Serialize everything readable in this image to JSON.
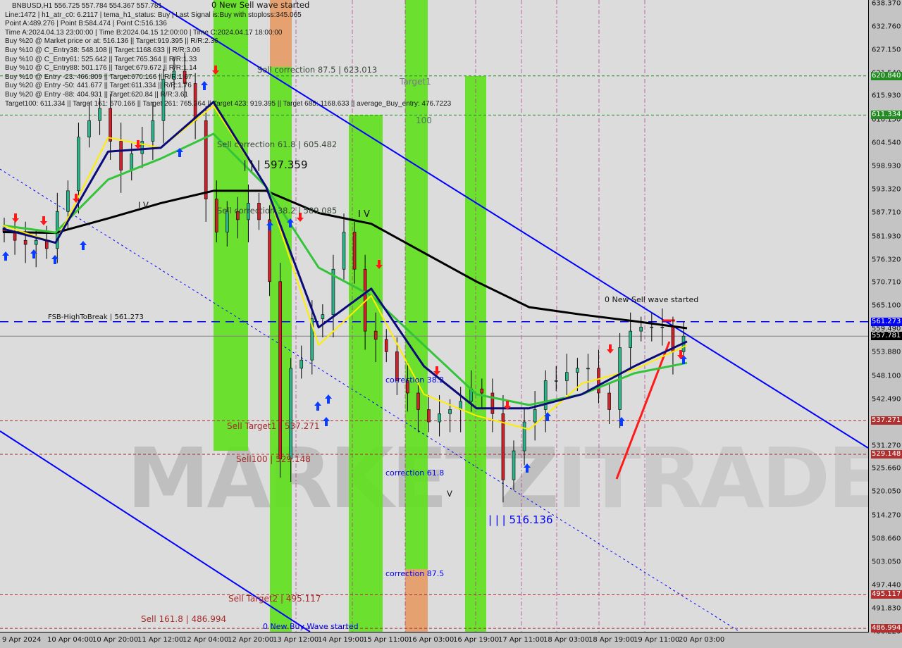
{
  "header": {
    "symbol_line": "BNBUSD,H1  556.725 557.784 554.367 557.781",
    "info_lines": [
      "Line:1472 | h1_atr_c0: 6.2117 | tema_h1_status: Buy | Last Signal is:Buy with stoploss:345.065",
      "Point A:489.276 | Point B:584.474 | Point C:516.136",
      "Time A:2024.04.13 23:00:00 | Time B:2024.04.15 12:00:00 | Time C:2024.04.17 18:00:00",
      "Buy %20 @ Market price or at: 516.136 || Target:919.395 || R/R:2.36",
      "Buy %10 @ C_Entry38: 548.108 || Target:1168.633 || R/R:3.06",
      "Buy %10 @ C_Entry61: 525.642 || Target:765.364 || R/R:1.33",
      "Buy %10 @ C_Entry88: 501.176 || Target:679.672 || R/R:1.14",
      "Buy %10 @ Entry -23: 466.809 || Target:670.166 || R/R:1.67",
      "Buy %20 @ Entry -50: 441.677 || Target:611.334 || R/R:1.76",
      "Buy %20 @ Entry -88: 404.931 || Target:620.84 || R/R:3.61",
      "Target100: 611.334 || Target 161: 670.166 || Target 261: 765.364 || Target 423: 919.395 || Target 685: 1168.633 || average_Buy_entry: 476.7223"
    ]
  },
  "annotations": {
    "new_sell_wave_top": "0 New Sell wave started",
    "sell_corr_875": "Sell correction 87.5 | 623.013",
    "sell_corr_618": "Sell correction 61.8 | 605.482",
    "sell_corr_382": "Sell correction 38.2 | 589.085",
    "wave_label_597": "| | | 597.359",
    "target1": "Target1",
    "t100": "100",
    "wave_iv_left": "I V",
    "wave_iv_mid": "I V",
    "wave_v": "V",
    "fsb": "FSB-HighToBreak | 561.273",
    "sell_target1": "Sell Target1 | 537.271",
    "sell_100": "Sell100 | 529.148",
    "sell_target2": "Sell Target2 | 495.117",
    "sell_161": "Sell 161.8 | 486.994",
    "corr_382": "correction 38.2",
    "corr_618": "correction 61.8",
    "corr_875": "correction 87.5",
    "wave_516": "| | | 516.136",
    "new_buy_wave": "0 New Buy Wave started",
    "new_sell_wave_right": "0 New Sell wave started",
    "watermark": "MARKETZITRADE"
  },
  "colors": {
    "background": "#dcdcdc",
    "band_green": "#5ee01c",
    "band_orange": "#e59a64",
    "bull": "#2bb38a",
    "bear": "#d0202a",
    "ma_black": "#000000",
    "ma_green": "#33c43a",
    "ma_navy": "#0b0b78",
    "ma_yellow": "#ffee00",
    "channel": "#0000ff",
    "target_line": "#a52a2a",
    "green_level": "#228b22"
  },
  "chart_data": {
    "type": "candlestick",
    "title": "BNBUSD,H1",
    "ylim": [
      486.22,
      638.37
    ],
    "grid": false,
    "y_ticks": [
      "638.370",
      "632.760",
      "627.150",
      "621.540",
      "615.930",
      "610.150",
      "604.540",
      "598.930",
      "593.320",
      "587.710",
      "581.930",
      "576.320",
      "570.710",
      "565.100",
      "559.490",
      "553.880",
      "548.100",
      "542.490",
      "536.880",
      "531.270",
      "525.660",
      "520.050",
      "514.270",
      "508.660",
      "503.050",
      "497.440",
      "491.830",
      "486.220"
    ],
    "x_ticks": [
      "9 Apr 2024",
      "10 Apr 04:00",
      "10 Apr 20:00",
      "11 Apr 12:00",
      "12 Apr 04:00",
      "12 Apr 20:00",
      "13 Apr 12:00",
      "14 Apr 19:00",
      "15 Apr 11:00",
      "16 Apr 03:00",
      "16 Apr 19:00",
      "17 Apr 11:00",
      "18 Apr 03:00",
      "18 Apr 19:00",
      "19 Apr 11:00",
      "20 Apr 03:00"
    ],
    "close_approx": [
      583,
      581,
      580,
      581,
      579,
      588,
      593,
      606,
      610,
      613,
      605,
      598,
      602,
      605,
      610,
      620,
      622,
      619,
      610,
      591,
      583,
      588,
      586,
      590,
      586,
      571,
      528,
      550,
      552,
      562,
      563,
      574,
      583,
      574,
      559,
      557,
      554,
      547,
      544,
      540,
      537,
      539,
      540,
      542,
      545,
      544,
      539,
      523,
      530,
      537,
      540,
      547,
      547,
      549,
      550,
      550,
      544,
      540,
      555,
      559,
      560,
      560,
      560,
      554,
      557.781
    ],
    "indicators": {
      "ma_black": [
        583,
        582.8,
        586.3,
        590,
        593,
        593,
        587.6,
        585,
        578,
        571,
        564.8,
        563,
        561.4,
        559.7
      ],
      "ma_navy": [
        583.8,
        580.4,
        602.5,
        603.4,
        614.5,
        594,
        559.9,
        569.3,
        550.5,
        540.3,
        540.3,
        543.7,
        550.5,
        556.5
      ],
      "ma_green": [
        584.6,
        582.9,
        595.7,
        600.8,
        606.8,
        594,
        574.4,
        567.6,
        555.6,
        543.7,
        541.1,
        543.7,
        548.8,
        551.3
      ],
      "ma_yellow": [
        584.6,
        580.4,
        605.9,
        603.4,
        613.6,
        594,
        555.6,
        567.6,
        543.7,
        538.5,
        535.2,
        546.3,
        549.7,
        555.6
      ]
    },
    "levels": [
      {
        "price": 620.84,
        "label": "620.840",
        "style": "green"
      },
      {
        "price": 611.334,
        "label": "611.334",
        "style": "green"
      },
      {
        "price": 561.273,
        "label": "561.273",
        "style": "blue"
      },
      {
        "price": 557.781,
        "label": "557.781",
        "style": "current"
      },
      {
        "price": 537.271,
        "label": "537.271",
        "style": "red"
      },
      {
        "price": 529.148,
        "label": "529.148",
        "style": "red"
      },
      {
        "price": 495.117,
        "label": "495.117",
        "style": "red"
      },
      {
        "price": 486.994,
        "label": "486.994",
        "style": "red"
      }
    ]
  }
}
